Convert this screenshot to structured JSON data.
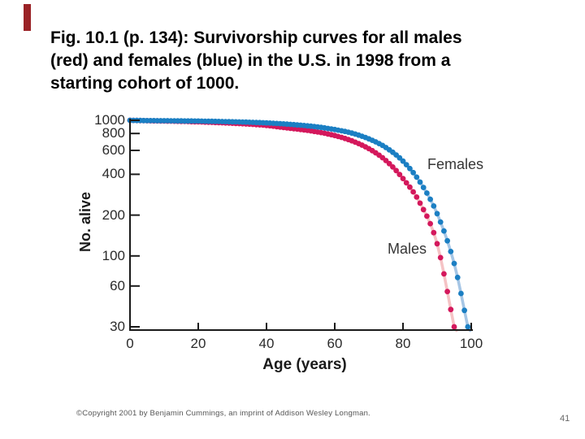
{
  "slide": {
    "accent_color": "#9a2226",
    "title_lines": [
      "Fig. 10.1 (p. 134): Survivorship curves for all males",
      "(red) and females (blue) in the U.S. in 1998 from a",
      "starting cohort of 1000."
    ],
    "copyright": "©Copyright 2001 by Benjamin Cummings, an imprint of Addison Wesley Longman.",
    "page_number": "41"
  },
  "chart_data": {
    "type": "line",
    "title": "",
    "xlabel": "Age (years)",
    "ylabel": "No. alive",
    "y_scale": "log",
    "grid": false,
    "xlim": [
      0,
      100
    ],
    "ylim": [
      30,
      1000
    ],
    "x_ticks": [
      0,
      20,
      40,
      60,
      80,
      100
    ],
    "y_ticks": [
      1000,
      800,
      600,
      400,
      200,
      100,
      60,
      30
    ],
    "axis_color": "#1a1a1a",
    "annotations": [
      {
        "text": "Females"
      },
      {
        "text": "Males"
      }
    ],
    "series": [
      {
        "name": "Males",
        "point_color": "#d4185c",
        "line_color": "#f5c3c5",
        "x": [
          0,
          5,
          10,
          15,
          20,
          25,
          30,
          35,
          40,
          45,
          50,
          55,
          60,
          65,
          70,
          75,
          80,
          85,
          90,
          95
        ],
        "values": [
          1000,
          993,
          988,
          982,
          974,
          964,
          952,
          937,
          917,
          885,
          856,
          820,
          772,
          706,
          618,
          505,
          372,
          245,
          123,
          30
        ]
      },
      {
        "name": "Females",
        "point_color": "#1b7fc3",
        "line_color": "#a6c6e5",
        "x": [
          0,
          5,
          10,
          15,
          20,
          25,
          30,
          35,
          40,
          45,
          50,
          55,
          60,
          65,
          70,
          75,
          80,
          85,
          90,
          95,
          99
        ],
        "values": [
          1000,
          995,
          993,
          990,
          987,
          982,
          976,
          968,
          957,
          941,
          920,
          893,
          855,
          805,
          730,
          630,
          500,
          350,
          205,
          88,
          30
        ]
      }
    ]
  }
}
